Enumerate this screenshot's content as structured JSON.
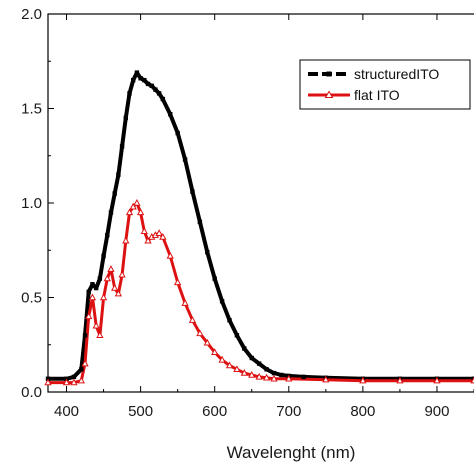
{
  "chart_data": {
    "type": "line",
    "title": "",
    "xlabel": "Wavelenght (nm)",
    "ylabel": "",
    "xlim": [
      375,
      950
    ],
    "ylim": [
      0,
      2.0
    ],
    "x_ticks": [
      400,
      500,
      600,
      700,
      800,
      900
    ],
    "y_ticks": [
      0.0,
      0.5,
      1.0,
      1.5,
      2.0
    ],
    "x_tick_labels": [
      "400",
      "500",
      "600",
      "700",
      "800",
      "900"
    ],
    "y_tick_labels": [
      "0.0",
      "0.5",
      "1.0",
      "1.5",
      "2.0"
    ],
    "grid": false,
    "legend_position": "top-right",
    "series": [
      {
        "name": "structuredITO",
        "color": "#000000",
        "marker": "square",
        "x": [
          375,
          400,
          410,
          420,
          425,
          430,
          435,
          440,
          445,
          450,
          455,
          460,
          465,
          470,
          475,
          480,
          485,
          490,
          495,
          500,
          505,
          510,
          515,
          520,
          525,
          530,
          540,
          550,
          560,
          570,
          580,
          590,
          600,
          610,
          620,
          630,
          640,
          650,
          660,
          670,
          680,
          690,
          700,
          720,
          750,
          800,
          850,
          900,
          950
        ],
        "y": [
          0.07,
          0.07,
          0.08,
          0.12,
          0.3,
          0.53,
          0.57,
          0.55,
          0.6,
          0.72,
          0.83,
          0.95,
          1.05,
          1.15,
          1.3,
          1.45,
          1.58,
          1.65,
          1.69,
          1.66,
          1.65,
          1.63,
          1.62,
          1.6,
          1.58,
          1.55,
          1.47,
          1.37,
          1.23,
          1.06,
          0.9,
          0.74,
          0.6,
          0.48,
          0.38,
          0.3,
          0.23,
          0.18,
          0.15,
          0.12,
          0.1,
          0.09,
          0.085,
          0.08,
          0.075,
          0.07,
          0.07,
          0.07,
          0.07
        ]
      },
      {
        "name": "flat ITO",
        "color": "#dd1111",
        "marker": "triangle",
        "x": [
          375,
          400,
          410,
          420,
          425,
          430,
          435,
          440,
          445,
          450,
          455,
          460,
          465,
          470,
          475,
          480,
          485,
          490,
          495,
          500,
          505,
          510,
          515,
          520,
          525,
          530,
          540,
          550,
          560,
          570,
          580,
          590,
          600,
          610,
          620,
          630,
          640,
          650,
          660,
          670,
          680,
          700,
          750,
          800,
          850,
          900,
          950
        ],
        "y": [
          0.05,
          0.05,
          0.05,
          0.06,
          0.15,
          0.4,
          0.5,
          0.35,
          0.3,
          0.5,
          0.6,
          0.65,
          0.55,
          0.52,
          0.62,
          0.8,
          0.95,
          0.98,
          1.0,
          0.95,
          0.85,
          0.8,
          0.82,
          0.83,
          0.84,
          0.82,
          0.72,
          0.58,
          0.47,
          0.38,
          0.31,
          0.26,
          0.21,
          0.17,
          0.14,
          0.12,
          0.1,
          0.09,
          0.08,
          0.075,
          0.07,
          0.07,
          0.065,
          0.06,
          0.06,
          0.06,
          0.06
        ]
      }
    ]
  }
}
